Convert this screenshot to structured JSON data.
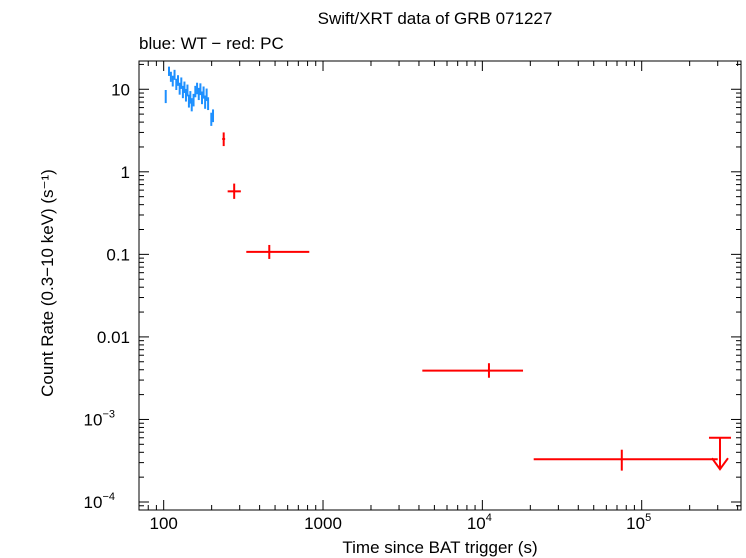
{
  "chart_data": {
    "type": "scatter",
    "title": "Swift/XRT data of GRB 071227",
    "subtitle": "blue: WT − red: PC",
    "xlabel": "Time since BAT trigger (s)",
    "ylabel": "Count Rate (0.3−10 keV) (s⁻¹)",
    "x_scale": "log",
    "y_scale": "log",
    "xlim": [
      70,
      420000
    ],
    "ylim": [
      8e-05,
      22
    ],
    "x_ticks": [
      {
        "value": 100,
        "base": "100",
        "exp": ""
      },
      {
        "value": 1000,
        "base": "1000",
        "exp": ""
      },
      {
        "value": 10000,
        "base": "10",
        "exp": "4"
      },
      {
        "value": 100000,
        "base": "10",
        "exp": "5"
      }
    ],
    "y_ticks": [
      {
        "value": 10,
        "base": "10",
        "exp": ""
      },
      {
        "value": 1,
        "base": "1",
        "exp": ""
      },
      {
        "value": 0.1,
        "base": "0.1",
        "exp": ""
      },
      {
        "value": 0.01,
        "base": "0.01",
        "exp": ""
      },
      {
        "value": 0.001,
        "base": "10",
        "exp": "−3"
      },
      {
        "value": 0.0001,
        "base": "10",
        "exp": "−4"
      }
    ],
    "grid": false,
    "series": [
      {
        "mode": "WT",
        "color": "#1e90ff",
        "points": [
          {
            "x": 103,
            "y": 8.2,
            "xlo": 102,
            "xhi": 104,
            "ylo": 6.8,
            "yhi": 9.8
          },
          {
            "x": 108,
            "y": 16.5,
            "xlo": 107,
            "xhi": 109,
            "ylo": 14.5,
            "yhi": 18.8
          },
          {
            "x": 111,
            "y": 14.2,
            "xlo": 110,
            "xhi": 112,
            "ylo": 12.3,
            "yhi": 16.3
          },
          {
            "x": 114,
            "y": 12.6,
            "xlo": 113,
            "xhi": 115,
            "ylo": 10.8,
            "yhi": 14.6
          },
          {
            "x": 117,
            "y": 15.0,
            "xlo": 116,
            "xhi": 118,
            "ylo": 13.0,
            "yhi": 17.2
          },
          {
            "x": 120,
            "y": 11.5,
            "xlo": 119,
            "xhi": 121,
            "ylo": 9.8,
            "yhi": 13.4
          },
          {
            "x": 123,
            "y": 12.8,
            "xlo": 122,
            "xhi": 124,
            "ylo": 11.0,
            "yhi": 14.8
          },
          {
            "x": 126,
            "y": 10.2,
            "xlo": 125,
            "xhi": 127,
            "ylo": 8.6,
            "yhi": 12.0
          },
          {
            "x": 129,
            "y": 11.9,
            "xlo": 128,
            "xhi": 130,
            "ylo": 10.1,
            "yhi": 13.9
          },
          {
            "x": 132,
            "y": 9.3,
            "xlo": 131,
            "xhi": 133,
            "ylo": 7.8,
            "yhi": 11.0
          },
          {
            "x": 135,
            "y": 10.6,
            "xlo": 134,
            "xhi": 136,
            "ylo": 9.0,
            "yhi": 12.4
          },
          {
            "x": 138,
            "y": 8.5,
            "xlo": 137,
            "xhi": 139,
            "ylo": 7.1,
            "yhi": 10.1
          },
          {
            "x": 141,
            "y": 9.7,
            "xlo": 140,
            "xhi": 142,
            "ylo": 8.2,
            "yhi": 11.4
          },
          {
            "x": 144,
            "y": 7.2,
            "xlo": 143,
            "xhi": 145,
            "ylo": 6.0,
            "yhi": 8.6
          },
          {
            "x": 147,
            "y": 8.0,
            "xlo": 146,
            "xhi": 148,
            "ylo": 6.7,
            "yhi": 9.5
          },
          {
            "x": 150,
            "y": 6.5,
            "xlo": 149,
            "xhi": 151,
            "ylo": 5.4,
            "yhi": 7.8
          },
          {
            "x": 154,
            "y": 7.4,
            "xlo": 153,
            "xhi": 155,
            "ylo": 6.2,
            "yhi": 8.8
          },
          {
            "x": 158,
            "y": 9.4,
            "xlo": 157,
            "xhi": 159,
            "ylo": 8.0,
            "yhi": 11.0
          },
          {
            "x": 162,
            "y": 10.2,
            "xlo": 161,
            "xhi": 163,
            "ylo": 8.7,
            "yhi": 12.0
          },
          {
            "x": 166,
            "y": 8.8,
            "xlo": 165,
            "xhi": 167,
            "ylo": 7.4,
            "yhi": 10.4
          },
          {
            "x": 170,
            "y": 10.0,
            "xlo": 169,
            "xhi": 171,
            "ylo": 8.5,
            "yhi": 11.8
          },
          {
            "x": 174,
            "y": 7.9,
            "xlo": 173,
            "xhi": 175,
            "ylo": 6.6,
            "yhi": 9.4
          },
          {
            "x": 178,
            "y": 9.1,
            "xlo": 177,
            "xhi": 179,
            "ylo": 7.7,
            "yhi": 10.8
          },
          {
            "x": 182,
            "y": 7.0,
            "xlo": 181,
            "xhi": 183,
            "ylo": 5.8,
            "yhi": 8.4
          },
          {
            "x": 186,
            "y": 8.6,
            "xlo": 185,
            "xhi": 187,
            "ylo": 7.2,
            "yhi": 10.2
          },
          {
            "x": 190,
            "y": 6.7,
            "xlo": 189,
            "xhi": 191,
            "ylo": 5.6,
            "yhi": 8.0
          },
          {
            "x": 199,
            "y": 4.3,
            "xlo": 197,
            "xhi": 201,
            "ylo": 3.6,
            "yhi": 5.2
          },
          {
            "x": 204,
            "y": 4.8,
            "xlo": 202,
            "xhi": 206,
            "ylo": 4.0,
            "yhi": 5.7
          }
        ]
      },
      {
        "mode": "PC",
        "color": "#ff0000",
        "points": [
          {
            "x": 238,
            "y": 2.5,
            "xlo": 233,
            "xhi": 243,
            "ylo": 2.05,
            "yhi": 3.0
          },
          {
            "x": 277,
            "y": 0.58,
            "xlo": 252,
            "xhi": 305,
            "ylo": 0.47,
            "yhi": 0.72
          },
          {
            "x": 460,
            "y": 0.107,
            "xlo": 330,
            "xhi": 820,
            "ylo": 0.088,
            "yhi": 0.13
          },
          {
            "x": 11000,
            "y": 0.0039,
            "xlo": 4200,
            "xhi": 18000,
            "ylo": 0.0032,
            "yhi": 0.0048
          },
          {
            "x": 75000,
            "y": 0.00033,
            "xlo": 21000,
            "xhi": 300000,
            "ylo": 0.00024,
            "yhi": 0.00043
          }
        ],
        "upper_limits": [
          {
            "x": 310000,
            "y": 0.0006,
            "arrow_to": 0.00025
          }
        ]
      }
    ]
  }
}
